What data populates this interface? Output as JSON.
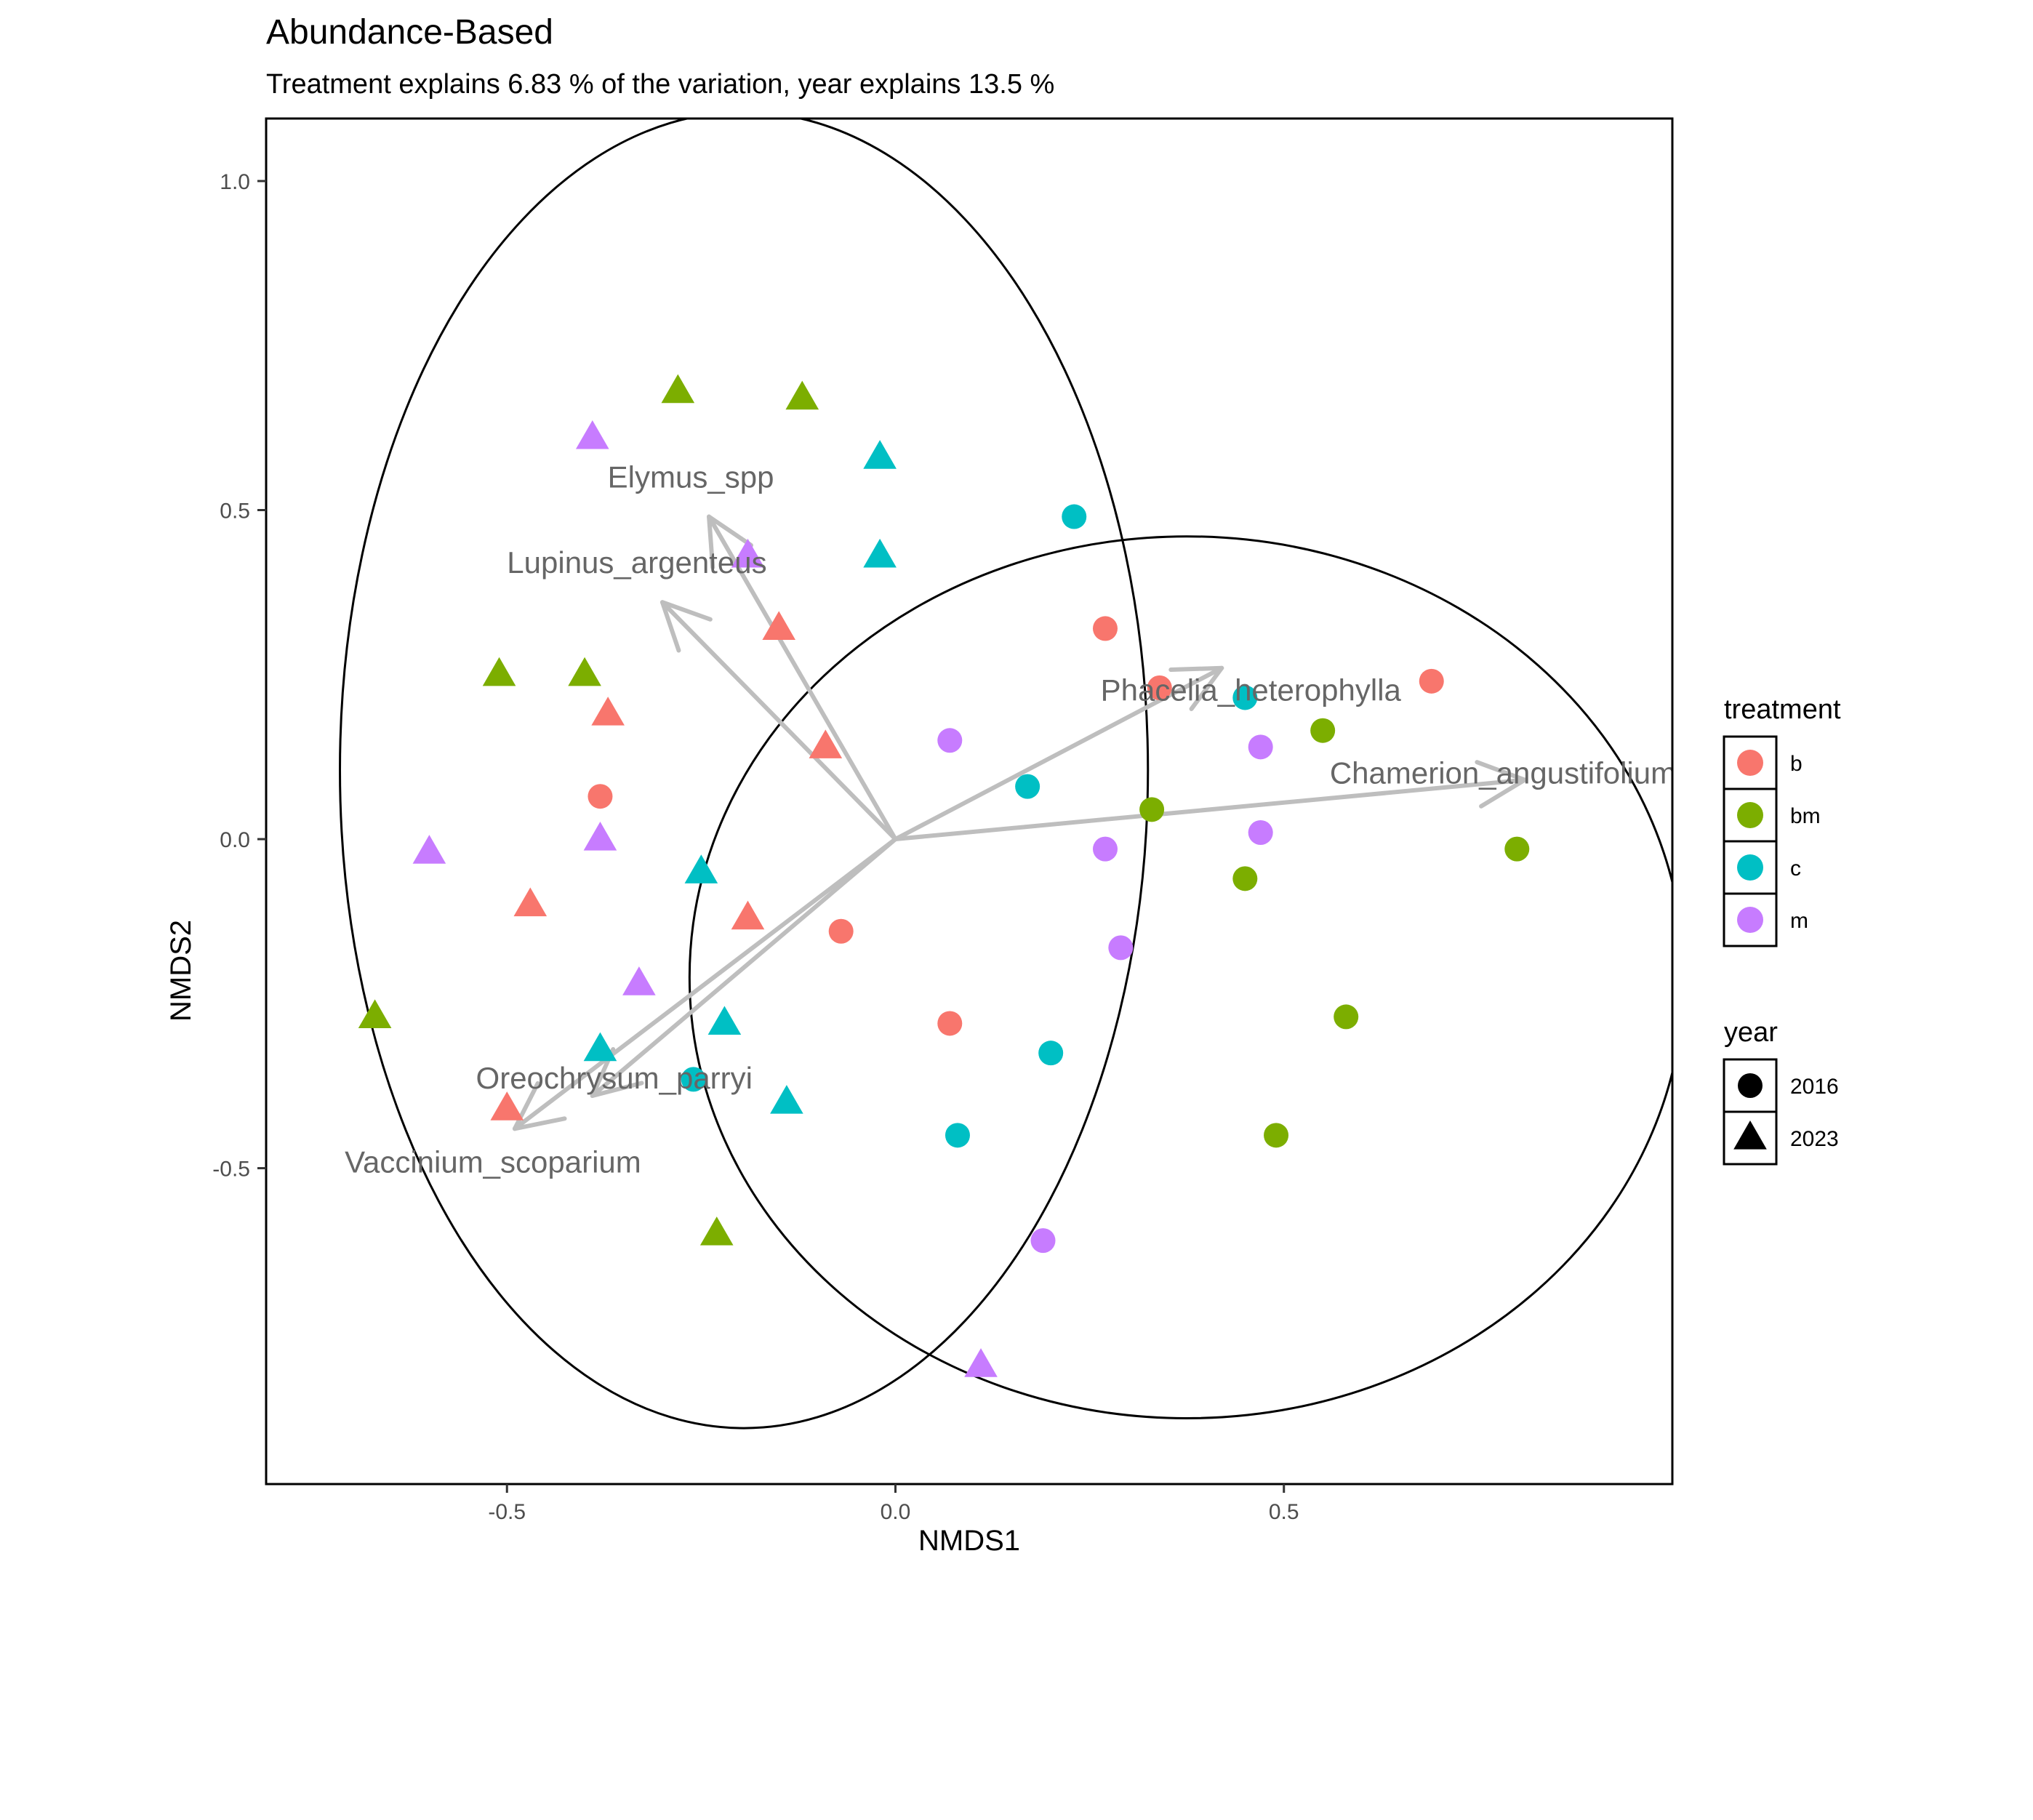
{
  "chart_data": {
    "type": "scatter",
    "title": "Abundance-Based",
    "subtitle": "Treatment explains 6.83 % of the variation, year explains 13.5 %",
    "xlabel": "NMDS1",
    "ylabel": "NMDS2",
    "xlim": [
      -0.81,
      1.0
    ],
    "ylim": [
      -0.98,
      1.095
    ],
    "xticks": [
      -0.5,
      0.0,
      0.5
    ],
    "xtick_labels": [
      "-0.5",
      "0.0",
      "0.5"
    ],
    "yticks": [
      -0.5,
      0.0,
      0.5,
      1.0
    ],
    "ytick_labels": [
      "-0.5",
      "0.0",
      "0.5",
      "1.0"
    ],
    "grid": false,
    "legend_placement": "right",
    "legends": {
      "treatment": {
        "title": "treatment",
        "items": [
          {
            "label": "b",
            "color": "#F8766D"
          },
          {
            "label": "bm",
            "color": "#7CAE00"
          },
          {
            "label": "c",
            "color": "#00BFC4"
          },
          {
            "label": "m",
            "color": "#C77CFF"
          }
        ]
      },
      "year": {
        "title": "year",
        "items": [
          {
            "label": "2016",
            "shape": "circle"
          },
          {
            "label": "2023",
            "shape": "triangle"
          }
        ]
      }
    },
    "points": [
      {
        "x": 0.27,
        "y": 0.32,
        "treatment": "b",
        "year": "2016"
      },
      {
        "x": 0.34,
        "y": 0.23,
        "treatment": "b",
        "year": "2016"
      },
      {
        "x": 0.69,
        "y": 0.24,
        "treatment": "b",
        "year": "2016"
      },
      {
        "x": -0.38,
        "y": 0.065,
        "treatment": "b",
        "year": "2016"
      },
      {
        "x": -0.07,
        "y": -0.14,
        "treatment": "b",
        "year": "2016"
      },
      {
        "x": 0.07,
        "y": -0.28,
        "treatment": "b",
        "year": "2016"
      },
      {
        "x": 0.55,
        "y": 0.165,
        "treatment": "bm",
        "year": "2016"
      },
      {
        "x": 0.33,
        "y": 0.045,
        "treatment": "bm",
        "year": "2016"
      },
      {
        "x": 0.8,
        "y": -0.015,
        "treatment": "bm",
        "year": "2016"
      },
      {
        "x": 0.45,
        "y": -0.06,
        "treatment": "bm",
        "year": "2016"
      },
      {
        "x": 0.58,
        "y": -0.27,
        "treatment": "bm",
        "year": "2016"
      },
      {
        "x": 0.49,
        "y": -0.45,
        "treatment": "bm",
        "year": "2016"
      },
      {
        "x": 0.23,
        "y": 0.49,
        "treatment": "c",
        "year": "2016"
      },
      {
        "x": 0.45,
        "y": 0.215,
        "treatment": "c",
        "year": "2016"
      },
      {
        "x": 0.17,
        "y": 0.08,
        "treatment": "c",
        "year": "2016"
      },
      {
        "x": 0.2,
        "y": -0.325,
        "treatment": "c",
        "year": "2016"
      },
      {
        "x": -0.26,
        "y": -0.365,
        "treatment": "c",
        "year": "2016"
      },
      {
        "x": 0.08,
        "y": -0.45,
        "treatment": "c",
        "year": "2016"
      },
      {
        "x": 0.07,
        "y": 0.15,
        "treatment": "m",
        "year": "2016"
      },
      {
        "x": 0.47,
        "y": 0.14,
        "treatment": "m",
        "year": "2016"
      },
      {
        "x": 0.27,
        "y": -0.015,
        "treatment": "m",
        "year": "2016"
      },
      {
        "x": 0.47,
        "y": 0.01,
        "treatment": "m",
        "year": "2016"
      },
      {
        "x": 0.29,
        "y": -0.165,
        "treatment": "m",
        "year": "2016"
      },
      {
        "x": 0.19,
        "y": -0.61,
        "treatment": "m",
        "year": "2016"
      },
      {
        "x": -0.15,
        "y": 0.32,
        "treatment": "b",
        "year": "2023"
      },
      {
        "x": -0.37,
        "y": 0.19,
        "treatment": "b",
        "year": "2023"
      },
      {
        "x": -0.09,
        "y": 0.14,
        "treatment": "b",
        "year": "2023"
      },
      {
        "x": -0.47,
        "y": -0.1,
        "treatment": "b",
        "year": "2023"
      },
      {
        "x": -0.19,
        "y": -0.12,
        "treatment": "b",
        "year": "2023"
      },
      {
        "x": -0.5,
        "y": -0.41,
        "treatment": "b",
        "year": "2023"
      },
      {
        "x": -0.28,
        "y": 0.68,
        "treatment": "bm",
        "year": "2023"
      },
      {
        "x": -0.12,
        "y": 0.67,
        "treatment": "bm",
        "year": "2023"
      },
      {
        "x": -0.51,
        "y": 0.25,
        "treatment": "bm",
        "year": "2023"
      },
      {
        "x": -0.4,
        "y": 0.25,
        "treatment": "bm",
        "year": "2023"
      },
      {
        "x": -0.67,
        "y": -0.27,
        "treatment": "bm",
        "year": "2023"
      },
      {
        "x": -0.23,
        "y": -0.6,
        "treatment": "bm",
        "year": "2023"
      },
      {
        "x": -0.02,
        "y": 0.58,
        "treatment": "c",
        "year": "2023"
      },
      {
        "x": -0.02,
        "y": 0.43,
        "treatment": "c",
        "year": "2023"
      },
      {
        "x": -0.25,
        "y": -0.05,
        "treatment": "c",
        "year": "2023"
      },
      {
        "x": -0.22,
        "y": -0.28,
        "treatment": "c",
        "year": "2023"
      },
      {
        "x": -0.38,
        "y": -0.32,
        "treatment": "c",
        "year": "2023"
      },
      {
        "x": -0.14,
        "y": -0.4,
        "treatment": "c",
        "year": "2023"
      },
      {
        "x": -0.39,
        "y": 0.61,
        "treatment": "m",
        "year": "2023"
      },
      {
        "x": -0.19,
        "y": 0.43,
        "treatment": "m",
        "year": "2023"
      },
      {
        "x": -0.38,
        "y": 0.0,
        "treatment": "m",
        "year": "2023"
      },
      {
        "x": -0.6,
        "y": -0.02,
        "treatment": "m",
        "year": "2023"
      },
      {
        "x": -0.33,
        "y": -0.22,
        "treatment": "m",
        "year": "2023"
      },
      {
        "x": 0.11,
        "y": -0.8,
        "treatment": "m",
        "year": "2023"
      }
    ],
    "vectors": [
      {
        "label": "Elymus_spp",
        "x": -0.24,
        "y": 0.49
      },
      {
        "label": "Lupinus_argenteus",
        "x": -0.3,
        "y": 0.36
      },
      {
        "label": "Phacelia_heterophylla",
        "x": 0.42,
        "y": 0.26
      },
      {
        "label": "Chamerion_angustifolium",
        "x": 0.81,
        "y": 0.09
      },
      {
        "label": "Oreochrysum_parryi",
        "x": -0.39,
        "y": -0.39
      },
      {
        "label": "Vaccinium_scoparium",
        "x": -0.49,
        "y": -0.44
      }
    ],
    "ellipses": [
      {
        "group": "2023",
        "cx": -0.195,
        "cy": 0.105,
        "rx": 0.52,
        "ry": 1.0
      },
      {
        "group": "2016",
        "cx": 0.375,
        "cy": -0.21,
        "rx": 0.64,
        "ry": 0.67
      }
    ]
  }
}
